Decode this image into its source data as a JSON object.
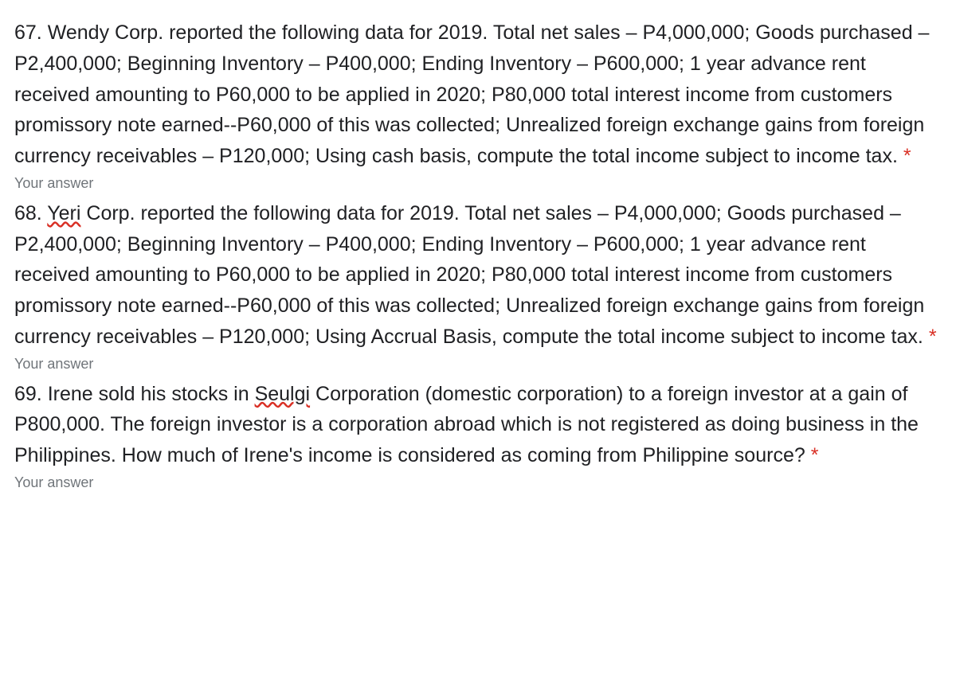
{
  "questions": [
    {
      "number": "67.",
      "corp": "Wendy",
      "spellcheck_corp": false,
      "prefix": " Corp. reported the following data for 2019. Total net sales – P4,000,000; Goods purchased – P2,400,000; Beginning Inventory – P400,000; Ending Inventory – P600,000; 1 year advance rent received amounting to P60,000 to be applied in 2020; P80,000 total interest income from customers promissory note earned--P60,000 of this was collected; Unrealized foreign exchange gains from foreign currency receivables – P120,000; Using cash basis, compute the total income subject to income tax. ",
      "required": "*",
      "answer_label": "Your answer"
    },
    {
      "number": "68.",
      "corp": "Yeri",
      "spellcheck_corp": true,
      "prefix": " Corp. reported the following data for 2019. Total net sales – P4,000,000; Goods purchased – P2,400,000; Beginning Inventory – P400,000; Ending Inventory – P600,000; 1 year advance rent received amounting to P60,000 to be applied in 2020; P80,000 total interest income from customers promissory note earned--P60,000 of this was collected; Unrealized foreign exchange gains from foreign currency receivables – P120,000; Using Accrual Basis, compute the total income subject to income tax. ",
      "required": "*",
      "answer_label": "Your answer"
    },
    {
      "number": "69.",
      "pre_text": " Irene sold his stocks in ",
      "corp": "Seulgi",
      "spellcheck_corp": true,
      "prefix": " Corporation (domestic corporation) to a foreign investor at a gain of P800,000. The foreign investor is a corporation abroad which is not registered as doing business in the Philippines. How much of Irene's income is considered as coming from Philippine source? ",
      "required": "*",
      "answer_label": "Your answer"
    }
  ],
  "colors": {
    "text": "#202124",
    "muted": "#70757a",
    "required": "#d93025",
    "background": "#ffffff"
  },
  "typography": {
    "question_fontsize": 25,
    "answer_fontsize": 18,
    "line_height": 1.55
  }
}
